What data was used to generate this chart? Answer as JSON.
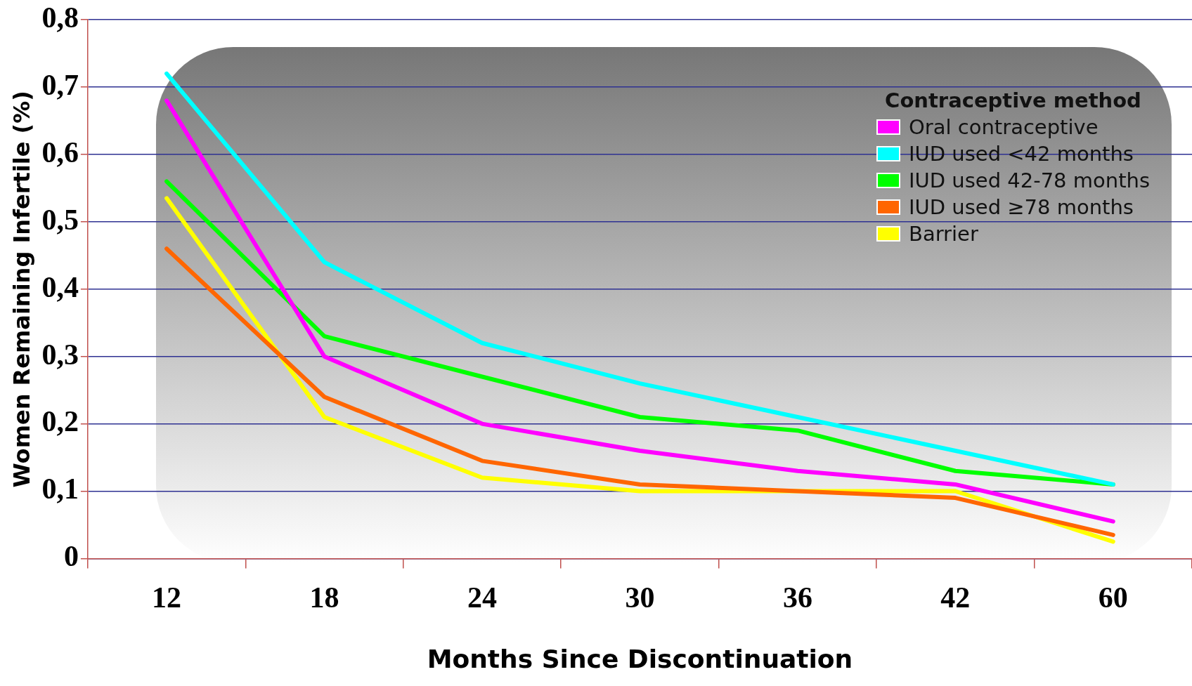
{
  "chart_data": {
    "type": "line",
    "xlabel": "Months Since Discontinuation",
    "ylabel": "Women Remaining Infertile (%)",
    "legend_title": "Contraceptive method",
    "categories": [
      "12",
      "18",
      "24",
      "30",
      "36",
      "42",
      "60"
    ],
    "ylim": [
      0,
      0.8
    ],
    "yticks": [
      0,
      {
        "value": 0.1,
        "label": "0,1"
      },
      {
        "value": 0.2,
        "label": "0,2"
      },
      {
        "value": 0.3,
        "label": "0,3"
      },
      {
        "value": 0.4,
        "label": "0,4"
      },
      {
        "value": 0.5,
        "label": "0,5"
      },
      {
        "value": 0.6,
        "label": "0,6"
      },
      {
        "value": 0.7,
        "label": "0,7"
      },
      {
        "value": 0.8,
        "label": "0,8"
      }
    ],
    "grid": "y",
    "legend": "top right",
    "marker": "none",
    "line_style": "solid",
    "series": [
      {
        "name": "Oral contraceptive",
        "color": "#ff00ff",
        "values": [
          0.68,
          0.3,
          0.2,
          0.16,
          0.13,
          0.11,
          0.055
        ]
      },
      {
        "name": "IUD used <42 months",
        "color": "#00ffff",
        "values": [
          0.72,
          0.44,
          0.32,
          0.26,
          0.21,
          0.16,
          0.11
        ]
      },
      {
        "name": "IUD used 42-78 months",
        "color": "#00ff00",
        "values": [
          0.56,
          0.33,
          0.27,
          0.21,
          0.19,
          0.13,
          0.11
        ]
      },
      {
        "name": "IUD used ≥78 months",
        "color": "#ff6600",
        "values": [
          0.46,
          0.24,
          0.145,
          0.11,
          0.1,
          0.09,
          0.035
        ]
      },
      {
        "name": "Barrier",
        "color": "#ffff00",
        "values": [
          0.535,
          0.21,
          0.12,
          0.1,
          0.1,
          0.1,
          0.025
        ]
      }
    ]
  }
}
